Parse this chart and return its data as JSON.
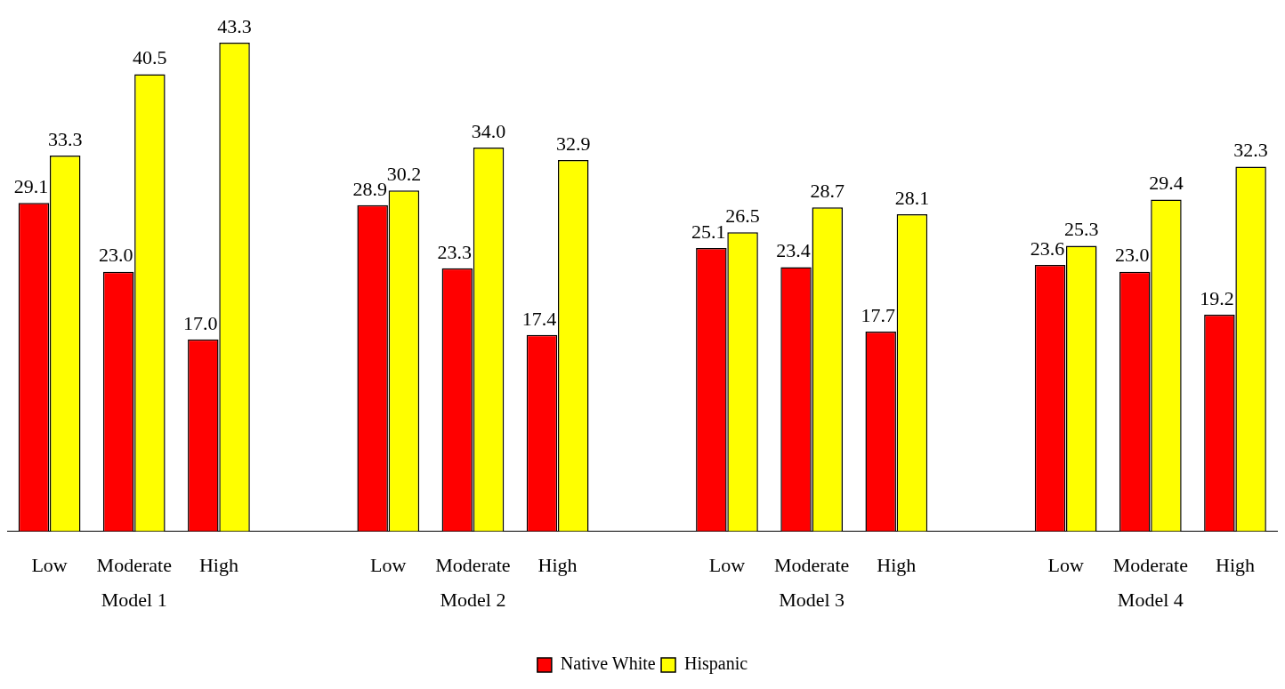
{
  "chart_data": {
    "type": "bar",
    "categories": [
      "Low",
      "Moderate",
      "High",
      null,
      "Low",
      "Moderate",
      "High",
      null,
      "Low",
      "Moderate",
      "High",
      null,
      "Low",
      "Moderate",
      "High"
    ],
    "series": [
      {
        "name": "Native White",
        "color": "#ff0000",
        "values": [
          29.1,
          23.0,
          17.0,
          null,
          28.9,
          23.3,
          17.4,
          null,
          25.1,
          23.4,
          17.7,
          null,
          23.6,
          23.0,
          19.2
        ],
        "value_labels": [
          "29.1",
          "23.0",
          "17.0",
          null,
          "28.9",
          "23.3",
          "17.4",
          null,
          "25.1",
          "23.4",
          "17.7",
          null,
          "23.6",
          "23.0",
          "19.2"
        ]
      },
      {
        "name": "Hispanic",
        "color": "#ffff00",
        "values": [
          33.3,
          40.5,
          43.3,
          null,
          30.2,
          34.0,
          32.9,
          null,
          26.5,
          28.7,
          28.1,
          null,
          25.3,
          29.4,
          32.3
        ],
        "value_labels": [
          "33.3",
          "40.5",
          "43.3",
          null,
          "30.2",
          "34.0",
          "32.9",
          null,
          "26.5",
          "28.7",
          "28.1",
          null,
          "25.3",
          "29.4",
          "32.3"
        ]
      }
    ],
    "annotations": [
      "Model 1",
      "Model 2",
      "Model 3",
      "Model 4"
    ],
    "grid": false,
    "legend": "bottom"
  }
}
